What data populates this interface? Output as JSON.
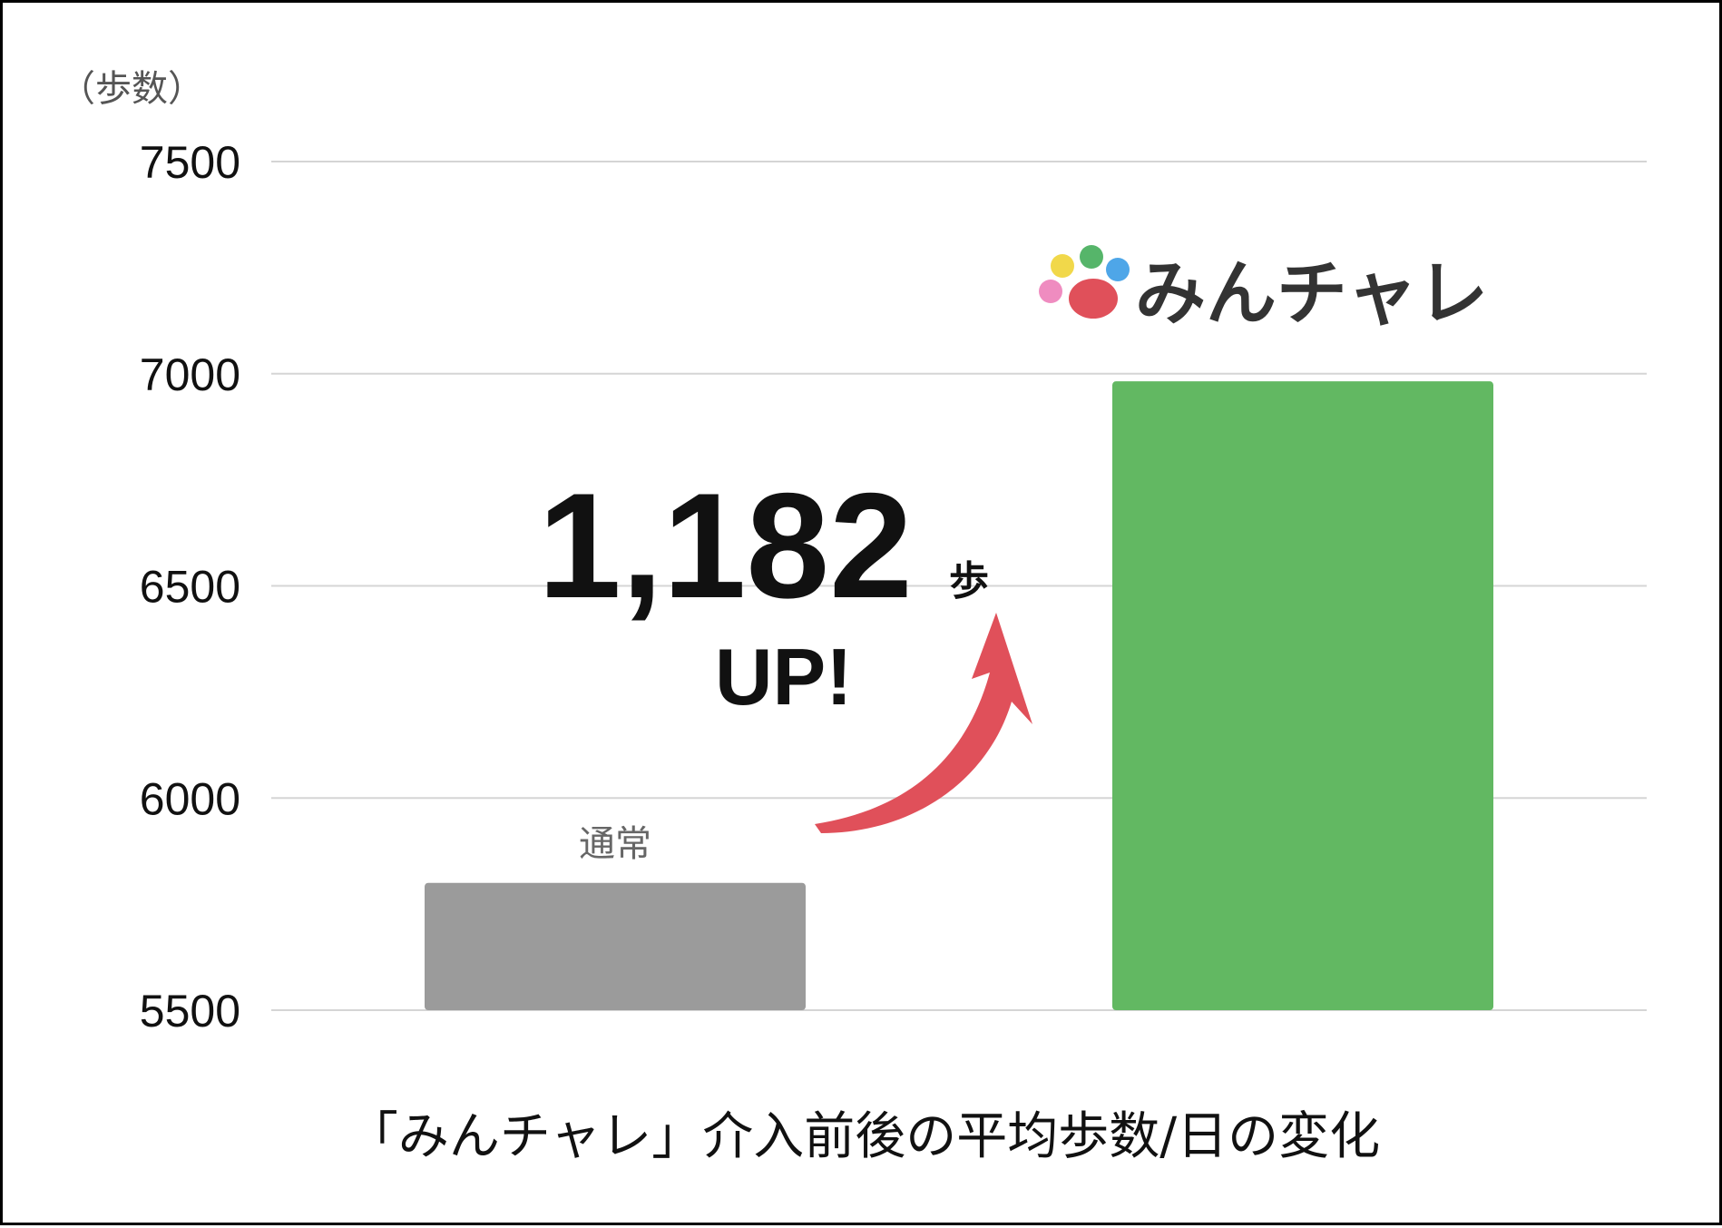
{
  "chart_data": {
    "type": "bar",
    "ylabel": "（歩数）",
    "ylim": [
      5500,
      7500
    ],
    "yticks": [
      5500,
      6000,
      6500,
      7000,
      7500
    ],
    "grid": true,
    "categories": [
      "通常",
      ""
    ],
    "values": [
      5800,
      6982
    ],
    "bar_colors": [
      "#9b9b9b",
      "#62b862"
    ],
    "title": "「みんチャレ」介入前後の平均歩数/日の変化"
  },
  "annotation": {
    "value": "1,182",
    "unit": "歩",
    "text": "UP!",
    "arrow_color": "#e0505a"
  },
  "logo": {
    "text": "みんチャレ",
    "dot_colors": [
      "#f1d84a",
      "#56b56a",
      "#4ea6e8",
      "#ef8cc0",
      "#e0505a"
    ]
  }
}
